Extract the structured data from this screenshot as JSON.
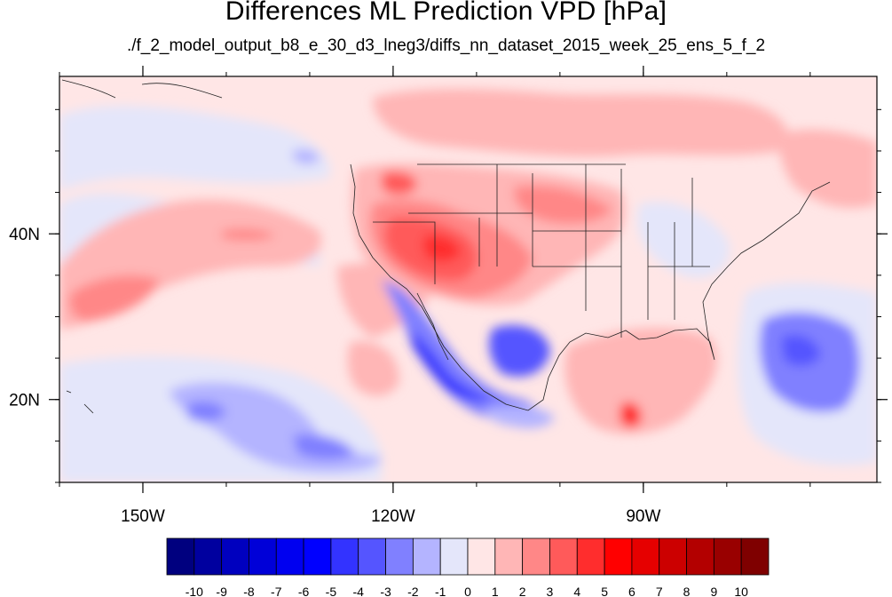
{
  "title": "Differences ML Prediction VPD [hPa]",
  "subtitle": "./f_2_model_output_b8_e_30_d3_lneg3/diffs_nn_dataset_2015_week_25_ens_5_f_2",
  "map": {
    "lon_range": [
      -160,
      -62
    ],
    "lat_range": [
      10,
      59
    ],
    "lon_ticks": [
      {
        "value": -150,
        "label": "150W"
      },
      {
        "value": -120,
        "label": "120W"
      },
      {
        "value": -90,
        "label": "90W"
      }
    ],
    "lat_ticks": [
      {
        "value": 40,
        "label": "40N"
      },
      {
        "value": 20,
        "label": "20N"
      }
    ]
  },
  "colorbar": {
    "levels": [
      "-10",
      "-9",
      "-8",
      "-7",
      "-6",
      "-5",
      "-4",
      "-3",
      "-2",
      "-1",
      "0",
      "1",
      "2",
      "3",
      "4",
      "5",
      "6",
      "7",
      "8",
      "9",
      "10"
    ],
    "colors": [
      "#00007f",
      "#00009f",
      "#0000bf",
      "#0000d8",
      "#0000f0",
      "#0000ff",
      "#3333ff",
      "#5555ff",
      "#8080ff",
      "#b4b4ff",
      "#e4e6fa",
      "#ffe6e6",
      "#ffb6b6",
      "#ff8787",
      "#ff5a5a",
      "#ff2d2d",
      "#ff0000",
      "#e60000",
      "#cc0000",
      "#b30000",
      "#990000",
      "#7f0000"
    ]
  }
}
